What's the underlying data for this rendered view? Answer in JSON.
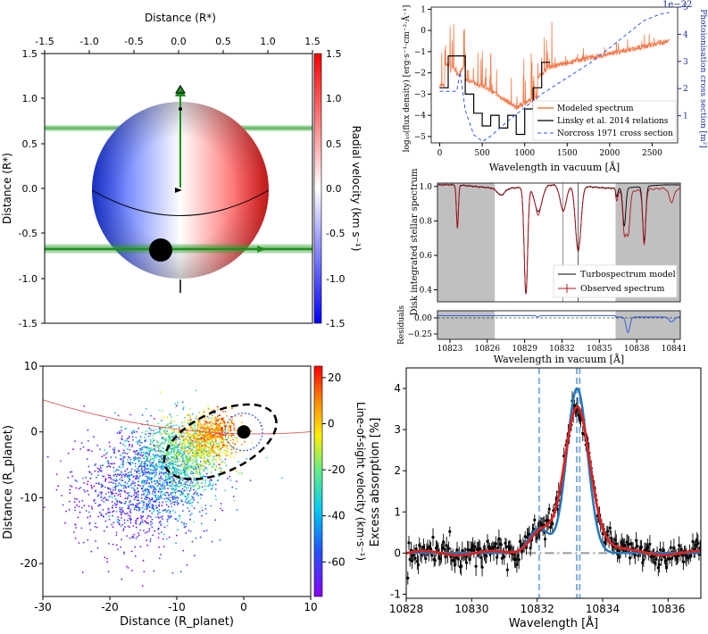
{
  "chart_data": [
    {
      "type": "line",
      "id": "star-transit",
      "title": "",
      "top_axis": {
        "label": "Distance (R*)",
        "range": [
          -1.5,
          1.5
        ],
        "ticks": [
          "-1.5",
          "-1.0",
          "-0.5",
          "0.0",
          "0.5",
          "1.0",
          "1.5"
        ]
      },
      "left_axis": {
        "label": "Distance (R*)",
        "range": [
          -1.5,
          1.5
        ],
        "ticks": [
          "1.5",
          "1.0",
          "0.5",
          "0.0",
          "-0.5",
          "-1.0",
          "-1.5"
        ]
      },
      "colorbar": {
        "label": "Radial velocity (km s⁻¹)",
        "range": [
          -1.5,
          1.5
        ],
        "ticks": [
          "1.5",
          "1.0",
          "0.5",
          "0.0",
          "-0.5",
          "-1.0",
          "-1.5"
        ],
        "colors": [
          "#0000ff",
          "#ffffff",
          "#ff0000"
        ]
      },
      "features": {
        "star_radius": 1.0,
        "planet_center": [
          -0.22,
          -0.68
        ],
        "planet_radius": 0.08,
        "transit_chord_y": -0.68,
        "upper_band_y": 0.7,
        "spin_axis_top": 1.15
      }
    },
    {
      "type": "line",
      "id": "sed",
      "xlabel": "Wavelength in vacuum [Å]",
      "ylabel": "log₁₀(flux density) [erg·s⁻¹·cm⁻²·Å⁻¹]",
      "y2label": "Photoionisation cross section [m²]",
      "offset_text": "1e−22",
      "xlim": [
        -100,
        2800
      ],
      "ylim": [
        -5.3,
        1.1
      ],
      "y2lim": [
        0,
        5
      ],
      "xticks": [
        "0",
        "500",
        "1000",
        "1500",
        "2000",
        "2500"
      ],
      "yticks": [
        "1",
        "0",
        "−1",
        "−2",
        "−3",
        "−4",
        "−5"
      ],
      "y2ticks": [
        "1",
        "2",
        "3",
        "4",
        "5"
      ],
      "legend": [
        "Modeled spectrum",
        "Linsky et al. 2014 relations",
        "Norcross 1971 cross section"
      ],
      "series": [
        {
          "name": "Linsky et al. 2014 relations",
          "color": "#000000",
          "x": [
            0,
            100,
            100,
            300,
            300,
            400,
            400,
            500,
            500,
            600,
            600,
            700,
            700,
            800,
            800,
            900,
            900,
            1000,
            1000,
            1100,
            1100,
            1200,
            1200,
            1300
          ],
          "y": [
            -2.7,
            -2.7,
            -1.2,
            -1.2,
            -3.0,
            -3.0,
            -3.9,
            -3.9,
            -4.5,
            -4.5,
            -4.0,
            -4.0,
            -4.6,
            -4.6,
            -4.0,
            -4.0,
            -4.9,
            -4.9,
            -3.7,
            -3.7,
            -2.7,
            -2.7,
            -1.5,
            -1.5
          ]
        },
        {
          "name": "Norcross 1971 cross section",
          "color": "#3355ee",
          "x": [
            0,
            200,
            240,
            300,
            400,
            504,
            600,
            800,
            1000,
            1200,
            1500,
            1800,
            2000,
            2200,
            2400,
            2600,
            2700
          ],
          "y2": [
            1.9,
            1.9,
            2.6,
            1.2,
            0.3,
            0.05,
            0.25,
            0.8,
            1.3,
            1.8,
            2.4,
            3.0,
            3.5,
            4.0,
            4.5,
            4.75,
            4.8
          ]
        }
      ]
    },
    {
      "type": "line",
      "id": "stellar-spectrum",
      "xlabel": "Wavelength in vacuum [Å]",
      "ylabel": "Disk integrated stellar spectrum",
      "xlim": [
        10822,
        10841.5
      ],
      "ylim": [
        0.33,
        1.02
      ],
      "xticks": [
        "10823",
        "10826",
        "10829",
        "10832",
        "10835",
        "10838",
        "10841"
      ],
      "yticks": [
        "1.0",
        "0.8",
        "0.6",
        "0.4"
      ],
      "shaded": [
        [
          10822,
          10826.6
        ],
        [
          10836.3,
          10841.5
        ]
      ],
      "vlines": [
        10832.06,
        10833.3
      ],
      "legend": [
        "Turbospectrum model",
        "Observed spectrum"
      ],
      "lines": [
        {
          "center": 10823.6,
          "depth": 0.25,
          "width": 0.08
        },
        {
          "center": 10827.1,
          "depth": 0.04,
          "width": 0.3
        },
        {
          "center": 10829.1,
          "depth": 0.62,
          "width": 0.14
        },
        {
          "center": 10830.1,
          "depth": 0.15,
          "width": 0.3
        },
        {
          "center": 10832.1,
          "depth": 0.15,
          "width": 0.25
        },
        {
          "center": 10833.3,
          "depth": 0.38,
          "width": 0.22
        },
        {
          "center": 10836.4,
          "depth": 0.05,
          "width": 0.08
        },
        {
          "center": 10837.0,
          "depth": 0.22,
          "width": 0.12
        },
        {
          "center": 10838.6,
          "depth": 0.32,
          "width": 0.12
        }
      ],
      "residuals": {
        "ylabel": "Residuals",
        "yticks": [
          "0.00",
          "−0.25"
        ],
        "ylim": [
          -0.38,
          0.08
        ]
      }
    },
    {
      "type": "scatter",
      "id": "particle-cloud",
      "xlabel": "Distance (R_planet)",
      "ylabel": "Distance (R_planet)",
      "xlim": [
        -30,
        10
      ],
      "ylim": [
        -25,
        10
      ],
      "xticks": [
        "-30",
        "-20",
        "-10",
        "0",
        "10"
      ],
      "yticks": [
        "10",
        "0",
        "-10",
        "-20"
      ],
      "colorbar": {
        "label": "Line-of-sight velocity (km·s⁻¹)",
        "range": [
          -75,
          25
        ],
        "ticks": [
          "20",
          "0",
          "-20",
          "-40",
          "-60"
        ],
        "colors": [
          "#8800ff",
          "#0066ff",
          "#00ccee",
          "#66ee88",
          "#ffee00",
          "#ff6600",
          "#ff0000"
        ]
      },
      "planet": {
        "x": 0,
        "y": 0,
        "r": 1.0
      },
      "roche_lobe": {
        "cx": 0,
        "cy": 0,
        "r": 2.8
      },
      "ellipse": {
        "cx": -3.5,
        "cy": -1.5,
        "rx": 9,
        "ry": 4.5,
        "angle_deg": 25
      }
    },
    {
      "type": "line",
      "id": "excess-absorption",
      "xlabel": "Wavelength [Å]",
      "ylabel": "Excess absorption [%]",
      "xlim": [
        10828,
        10837
      ],
      "ylim": [
        -1.1,
        4.5
      ],
      "xticks": [
        "10828",
        "10830",
        "10832",
        "10834",
        "10836"
      ],
      "yticks": [
        "4",
        "3",
        "2",
        "1",
        "0",
        "-1"
      ],
      "vlines": [
        10832.06,
        10833.21,
        10833.3
      ],
      "series": [
        {
          "name": "model-red",
          "color": "#dd2222",
          "components": [
            {
              "a": 3.3,
              "mu": 10833.22,
              "sigma": 0.38
            },
            {
              "a": 0.55,
              "mu": 10832.1,
              "sigma": 0.35
            },
            {
              "a": 0.3,
              "mu": 10833.6,
              "sigma": 0.6
            }
          ]
        },
        {
          "name": "model-blue",
          "color": "#2277bb",
          "components": [
            {
              "a": 4.0,
              "mu": 10833.22,
              "sigma": 0.32
            },
            {
              "a": 0.6,
              "mu": 10832.06,
              "sigma": 0.3
            }
          ]
        }
      ]
    }
  ]
}
